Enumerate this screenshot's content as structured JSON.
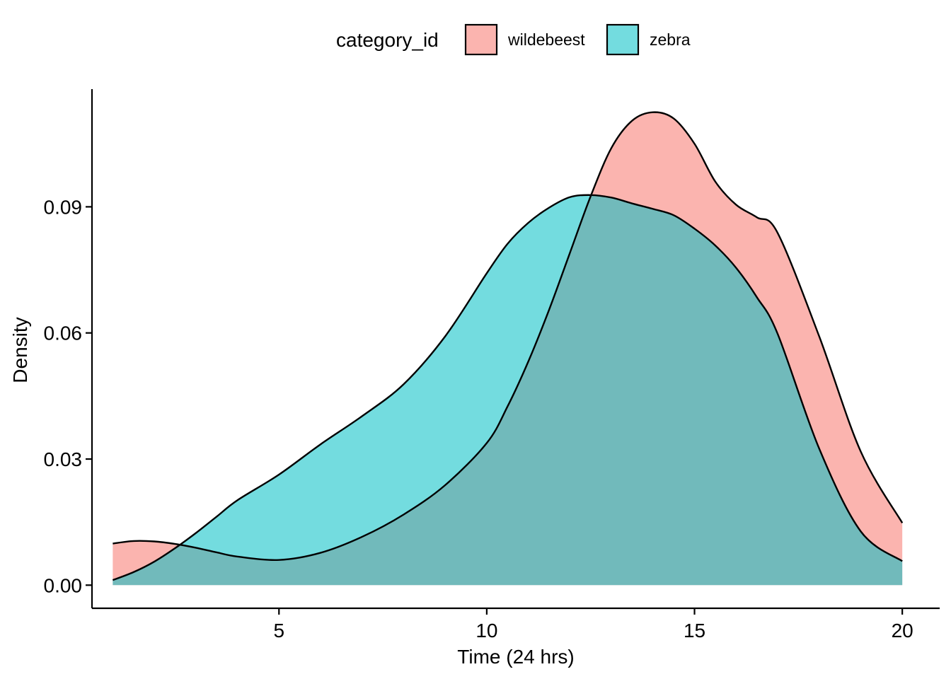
{
  "chart_data": {
    "type": "area",
    "subtype": "density",
    "title": "",
    "xlabel": "Time (24 hrs)",
    "ylabel": "Density",
    "xlim": [
      0.5,
      20.9
    ],
    "ylim": [
      -0.0055,
      0.118
    ],
    "xticks": [
      5,
      10,
      15,
      20
    ],
    "xtick_labels": [
      "5",
      "10",
      "15",
      "20"
    ],
    "yticks": [
      0.0,
      0.03,
      0.06,
      0.09
    ],
    "ytick_labels": [
      "0.00",
      "0.03",
      "0.06",
      "0.09"
    ],
    "grid": false,
    "legend": {
      "title": "category_id",
      "placement": "top",
      "entries": [
        "wildebeest",
        "zebra"
      ]
    },
    "series": [
      {
        "name": "wildebeest",
        "color": "#F8766D",
        "x": [
          1.0,
          1.5,
          2.0,
          2.5,
          3.0,
          3.5,
          4.0,
          5.0,
          6.0,
          7.0,
          8.0,
          9.0,
          10.0,
          10.5,
          11.0,
          11.5,
          12.0,
          12.5,
          13.0,
          13.5,
          14.0,
          14.5,
          15.0,
          15.5,
          16.0,
          16.5,
          17.0,
          18.0,
          19.0,
          20.0
        ],
        "y": [
          0.0099,
          0.0105,
          0.0104,
          0.0098,
          0.0089,
          0.0078,
          0.0068,
          0.006,
          0.0077,
          0.0115,
          0.0168,
          0.0238,
          0.0338,
          0.0425,
          0.0532,
          0.0655,
          0.079,
          0.0925,
          0.104,
          0.1105,
          0.1125,
          0.111,
          0.105,
          0.096,
          0.0905,
          0.0875,
          0.0838,
          0.0592,
          0.0318,
          0.0148
        ]
      },
      {
        "name": "zebra",
        "color": "#00BFC4",
        "x": [
          1.0,
          1.5,
          2.0,
          2.5,
          3.0,
          3.5,
          4.0,
          5.0,
          6.0,
          7.0,
          8.0,
          9.0,
          10.0,
          10.5,
          11.0,
          11.5,
          12.0,
          12.5,
          13.0,
          13.5,
          14.0,
          14.5,
          15.0,
          15.5,
          16.0,
          16.5,
          17.0,
          18.0,
          19.0,
          20.0
        ],
        "y": [
          0.0012,
          0.0031,
          0.0056,
          0.0088,
          0.0124,
          0.0163,
          0.0202,
          0.0263,
          0.0335,
          0.0402,
          0.0478,
          0.0592,
          0.0742,
          0.0812,
          0.0862,
          0.0898,
          0.0923,
          0.0928,
          0.0922,
          0.0908,
          0.0895,
          0.088,
          0.0848,
          0.0808,
          0.0755,
          0.0685,
          0.0598,
          0.0325,
          0.0128,
          0.0057
        ]
      }
    ]
  }
}
